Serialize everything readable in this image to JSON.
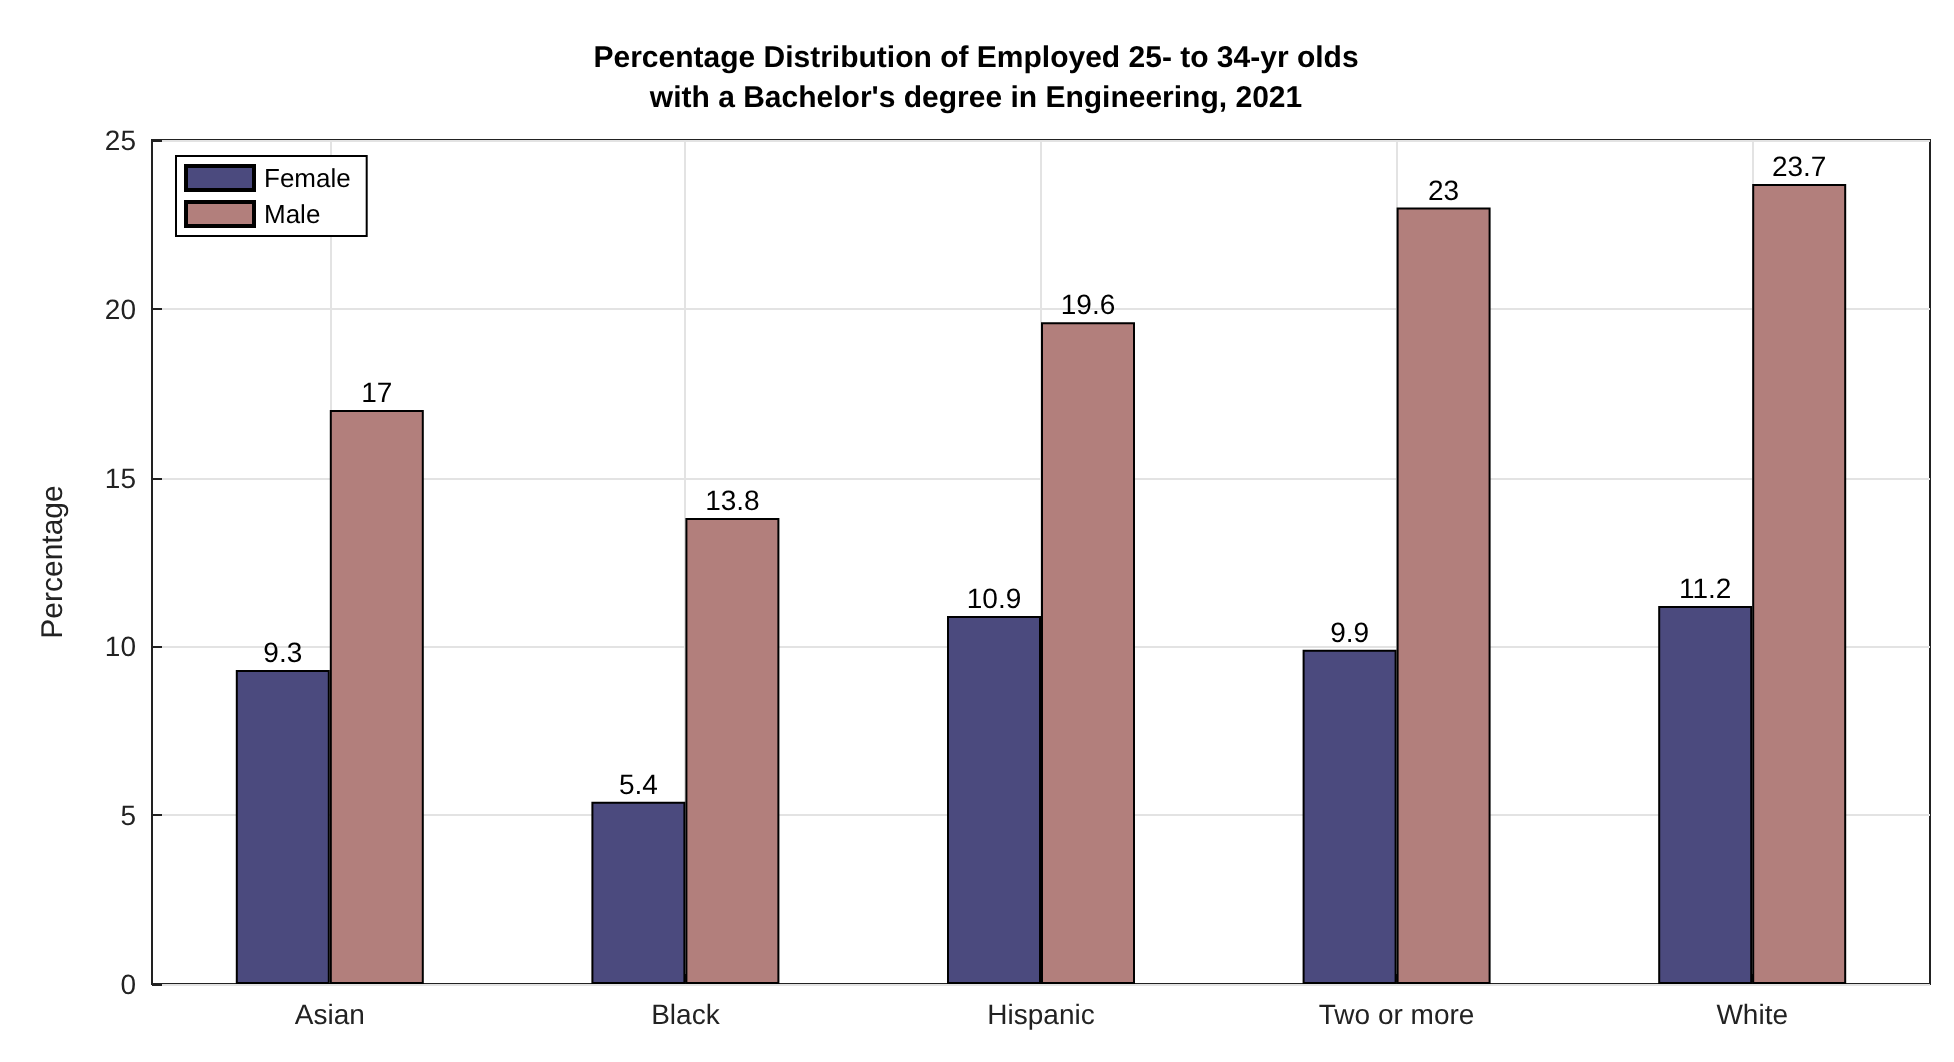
{
  "chart_data": {
    "type": "bar",
    "title": "Percentage Distribution of Employed 25- to 34-yr olds\nwith a Bachelor's degree in Engineering, 2021",
    "ylabel": "Percentage",
    "categories": [
      "Asian",
      "Black",
      "Hispanic",
      "Two or more",
      "White"
    ],
    "series": [
      {
        "name": "Female",
        "color": "#4b4a7e",
        "values": [
          9.3,
          5.4,
          10.9,
          9.9,
          11.2
        ]
      },
      {
        "name": "Male",
        "color": "#b27f7c",
        "values": [
          17,
          13.8,
          19.6,
          23,
          23.7
        ]
      }
    ],
    "ylim": [
      0,
      25
    ],
    "yticks": [
      0,
      5,
      10,
      15,
      20,
      25
    ],
    "grid": true,
    "legend": "top left",
    "data_labels": true
  }
}
